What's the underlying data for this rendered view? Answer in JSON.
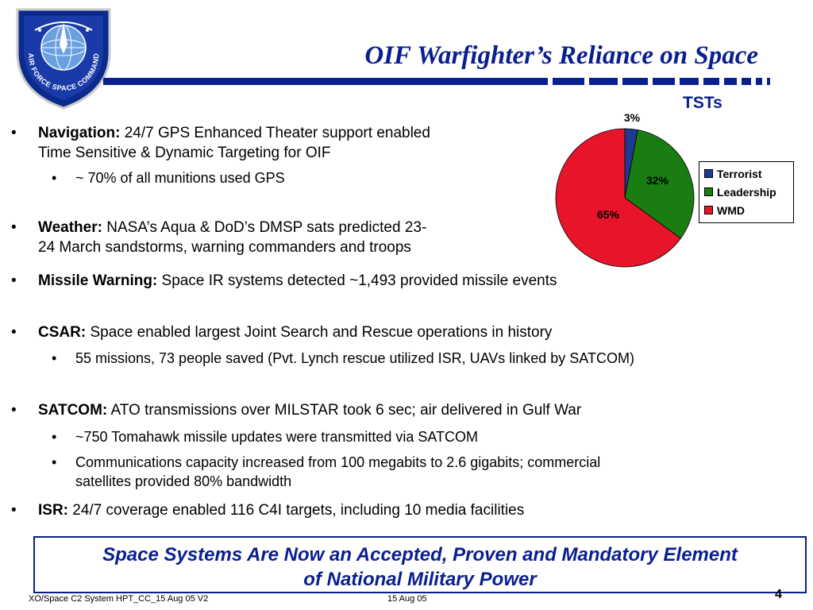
{
  "logo": {
    "icon": "air-force-space-command-emblem",
    "text": "AIR FORCE SPACE COMMAND"
  },
  "header": {
    "title": "OIF Warfighter’s Reliance on Space"
  },
  "bullets": [
    {
      "lead": "Navigation:",
      "lines": [
        " 24/7 GPS Enhanced Theater support enabled",
        "Time Sensitive & Dynamic Targeting for OIF"
      ]
    },
    {
      "lines": [
        "~ 70% of all munitions used GPS"
      ]
    },
    {
      "lead": "Weather:",
      "lines": [
        " NASA’s Aqua & DoD’s DMSP sats predicted 23-",
        "24 March sandstorms, warning commanders and troops"
      ]
    },
    {
      "lead": "Missile Warning:",
      "lines": [
        " Space IR systems detected ~1,493 provided missile events"
      ]
    },
    {
      "lead": "CSAR:",
      "lines": [
        " Space enabled largest Joint Search and Rescue operations in history"
      ]
    },
    {
      "lines": [
        "55 missions, 73 people saved  (Pvt. Lynch rescue utilized ISR, UAVs linked by SATCOM)"
      ]
    },
    {
      "lead": "SATCOM:",
      "lines": [
        " ATO transmissions over MILSTAR took 6 sec; air delivered in Gulf War"
      ]
    },
    {
      "lines": [
        "~750 Tomahawk missile updates were transmitted via SATCOM"
      ]
    },
    {
      "lines": [
        "Communications capacity increased from 100 megabits to 2.6 gigabits; commercial",
        "satellites provided 80% bandwidth"
      ]
    },
    {
      "lead": "ISR:",
      "lines": [
        " 24/7 coverage enabled 116 C4I targets, including 10 media facilities"
      ]
    }
  ],
  "bullet_glyph": "•",
  "chart_data": {
    "type": "pie",
    "title": "TSTs",
    "slices": [
      {
        "label": "Terrorist",
        "value": 3,
        "data_label": "3%",
        "color": "#1f3a93"
      },
      {
        "label": "Leadership",
        "value": 32,
        "data_label": "32%",
        "color": "#1a7d12"
      },
      {
        "label": "WMD",
        "value": 65,
        "data_label": "65%",
        "color": "#e8142a"
      }
    ],
    "legend_placement": "right"
  },
  "banner": {
    "lines": [
      "Space Systems Are Now an Accepted, Proven and Mandatory Element",
      "of National Military Power"
    ]
  },
  "footer": {
    "left": "XO/Space C2 System HPT_CC_15 Aug 05 V2",
    "center": "15 Aug 05",
    "page": "4"
  },
  "colors": {
    "accent": "#0a1f8f"
  }
}
